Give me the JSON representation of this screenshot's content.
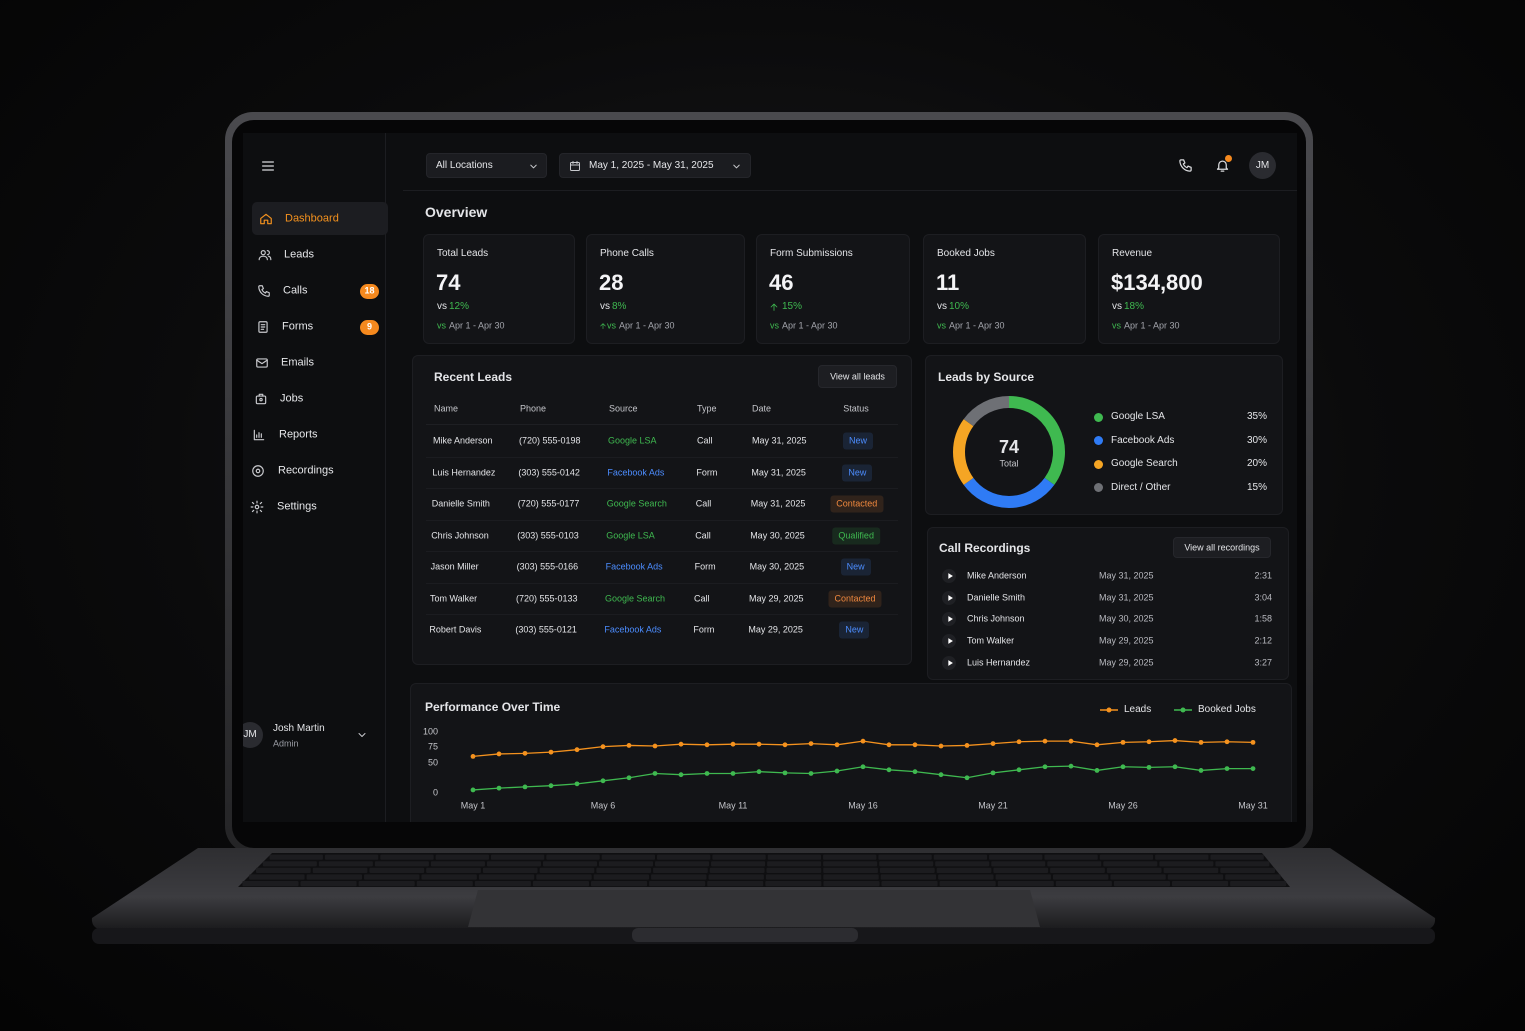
{
  "header": {
    "location": "All Locations",
    "date_range": "May 1, 2025 - May 31, 2025",
    "avatar": "JM"
  },
  "sidebar": {
    "nav": [
      {
        "label": "Dashboard"
      },
      {
        "label": "Leads"
      },
      {
        "label": "Calls",
        "badge": 18
      },
      {
        "label": "Forms",
        "badge": 9
      },
      {
        "label": "Emails"
      },
      {
        "label": "Jobs"
      },
      {
        "label": "Reports"
      },
      {
        "label": "Recordings"
      },
      {
        "label": "Settings"
      }
    ],
    "user": {
      "initials": "JM",
      "name": "Josh Martin",
      "role": "Admin"
    }
  },
  "overview": {
    "title": "Overview",
    "cards": [
      {
        "label": "Total Leads",
        "value": 74,
        "vs": "vs",
        "change": "12%",
        "period_vs": "vs",
        "period": "Apr 1 - Apr 30"
      },
      {
        "label": "Phone Calls",
        "value": 28,
        "vs": "vs",
        "change": "8%",
        "period_vs": "vs",
        "period": "Apr 1 - Apr 30"
      },
      {
        "label": "Form Submissions",
        "value": 46,
        "change": "15%",
        "period_vs": "vs",
        "period": "Apr 1 - Apr 30"
      },
      {
        "label": "Booked Jobs",
        "value": 11,
        "vs": "vs",
        "change": "10%",
        "period_vs": "vs",
        "period": "Apr 1 - Apr 30"
      },
      {
        "label": "Revenue",
        "value": "$134,800",
        "vs": "vs",
        "change": "18%",
        "period_vs": "vs",
        "period": "Apr 1 - Apr 30"
      }
    ]
  },
  "recent_leads": {
    "title": "Recent Leads",
    "button": "View all leads",
    "columns": [
      "Name",
      "Phone",
      "Source",
      "Type",
      "Date",
      "Status"
    ],
    "rows": [
      [
        "Mike Anderson",
        "(720) 555-0198",
        {
          "text": "Google LSA",
          "color": "#3fb950"
        },
        "Call",
        "May 31, 2025",
        {
          "text": "New",
          "color": "#4c8dff"
        }
      ],
      [
        "Luis Hernandez",
        "(303) 555-0142",
        {
          "text": "Facebook Ads",
          "color": "#4c8dff"
        },
        "Form",
        "May 31, 2025",
        {
          "text": "New",
          "color": "#4c8dff"
        }
      ],
      [
        "Danielle Smith",
        "(720) 555-0177",
        {
          "text": "Google Search",
          "color": "#3fb950"
        },
        "Call",
        "May 31, 2025",
        {
          "text": "Contacted",
          "color": "#f0883e"
        }
      ],
      [
        "Chris Johnson",
        "(303) 555-0103",
        {
          "text": "Google LSA",
          "color": "#3fb950"
        },
        "Call",
        "May 30, 2025",
        {
          "text": "Qualified",
          "color": "#3fb950"
        }
      ],
      [
        "Jason Miller",
        "(303) 555-0166",
        {
          "text": "Facebook Ads",
          "color": "#4c8dff"
        },
        "Form",
        "May 30, 2025",
        {
          "text": "New",
          "color": "#4c8dff"
        }
      ],
      [
        "Tom Walker",
        "(720) 555-0133",
        {
          "text": "Google Search",
          "color": "#3fb950"
        },
        "Call",
        "May 29, 2025",
        {
          "text": "Contacted",
          "color": "#f0883e"
        }
      ],
      [
        "Robert Davis",
        "(303) 555-0121",
        {
          "text": "Facebook Ads",
          "color": "#4c8dff"
        },
        "Form",
        "May 29, 2025",
        {
          "text": "New",
          "color": "#4c8dff"
        }
      ]
    ]
  },
  "leads_by_source": {
    "type": "pie",
    "title": "Leads by Source",
    "center_value": 74,
    "center_label": "Total",
    "categories": [
      "Google LSA",
      "Facebook Ads",
      "Google Search",
      "Direct / Other"
    ],
    "values": [
      35,
      30,
      20,
      15
    ],
    "value_labels": [
      "35%",
      "30%",
      "20%",
      "15%"
    ],
    "colors": [
      "#3fb950",
      "#2f7bf5",
      "#f5a524",
      "#6e7075"
    ]
  },
  "call_recordings": {
    "title": "Call Recordings",
    "button": "View all recordings",
    "rows": [
      [
        "Mike Anderson",
        "May 31, 2025",
        "2:31"
      ],
      [
        "Danielle Smith",
        "May 31, 2025",
        "3:04"
      ],
      [
        "Chris Johnson",
        "May 30, 2025",
        "1:58"
      ],
      [
        "Tom Walker",
        "May 29, 2025",
        "2:12"
      ],
      [
        "Luis Hernandez",
        "May 29, 2025",
        "3:27"
      ]
    ]
  },
  "performance": {
    "type": "line",
    "title": "Performance Over Time",
    "categories": [
      "May 1",
      null,
      null,
      null,
      null,
      "May 6",
      null,
      null,
      null,
      null,
      "May 11",
      null,
      null,
      null,
      null,
      "May 16",
      null,
      null,
      null,
      null,
      "May 21",
      null,
      null,
      null,
      null,
      "May 26",
      null,
      null,
      null,
      null,
      "May 31"
    ],
    "series": [
      {
        "name": "Leads",
        "color": "#f5921e",
        "values": [
          60,
          64,
          65,
          67,
          71,
          76,
          78,
          77,
          80,
          79,
          80,
          80,
          79,
          81,
          79,
          85,
          79,
          79,
          77,
          78,
          81,
          84,
          85,
          85,
          79,
          83,
          84,
          86,
          83,
          84,
          83
        ]
      },
      {
        "name": "Booked Jobs",
        "color": "#3fb950",
        "values": [
          5,
          8,
          10,
          12,
          15,
          20,
          25,
          32,
          30,
          32,
          32,
          35,
          33,
          32,
          36,
          43,
          38,
          35,
          30,
          25,
          33,
          38,
          43,
          44,
          37,
          43,
          42,
          43,
          37,
          40,
          40
        ]
      }
    ],
    "ylim": [
      0,
      100
    ],
    "yticks": [
      0,
      50,
      75,
      100
    ]
  }
}
